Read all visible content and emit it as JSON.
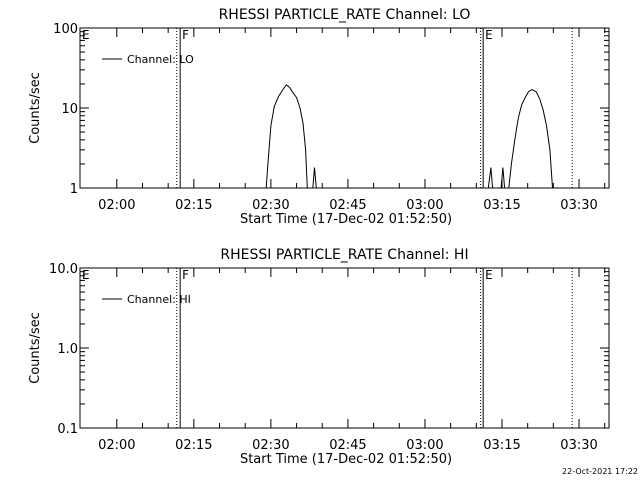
{
  "footer_timestamp": "22-Oct-2021 17:22",
  "chart_data": [
    {
      "type": "line",
      "title": "RHESSI PARTICLE_RATE Channel: LO",
      "xlabel": "Start Time (17-Dec-02 01:52:50)",
      "ylabel": "Counts/sec",
      "yscale": "log",
      "ylim": [
        1,
        100
      ],
      "ytick_labels": [
        {
          "v": 1,
          "label": "1"
        },
        {
          "v": 10,
          "label": "10"
        },
        {
          "v": 100,
          "label": "100"
        }
      ],
      "xtick_labels": [
        "02:00",
        "02:15",
        "02:30",
        "02:45",
        "03:00",
        "03:15",
        "03:30"
      ],
      "legend": {
        "placement": "top-left",
        "entries": [
          "Channel: LO"
        ]
      },
      "region_markers": [
        {
          "label": "E",
          "style": "solid",
          "time": "01:52:50"
        },
        {
          "label": "F",
          "style": "solid",
          "time": "02:12:20"
        },
        {
          "style": "dotted",
          "time": "02:11:40"
        },
        {
          "label": "E",
          "style": "solid",
          "time": "03:11:20"
        },
        {
          "style": "dotted",
          "time": "03:10:50"
        },
        {
          "style": "dotted",
          "time": "03:28:40"
        }
      ],
      "series": [
        {
          "name": "Channel: LO",
          "points": [
            [
              "02:29:05",
              1
            ],
            [
              "02:29:25",
              2.0
            ],
            [
              "02:30:00",
              6.0
            ],
            [
              "02:30:40",
              10.5
            ],
            [
              "02:31:30",
              14.0
            ],
            [
              "02:32:20",
              17.0
            ],
            [
              "02:33:00",
              19.5
            ],
            [
              "02:33:40",
              18.0
            ],
            [
              "02:34:20",
              15.5
            ],
            [
              "02:35:00",
              13.5
            ],
            [
              "02:35:40",
              10.0
            ],
            [
              "02:36:15",
              6.5
            ],
            [
              "02:36:45",
              3.0
            ],
            [
              "02:37:05",
              1
            ],
            [
              "02:38:10",
              1
            ],
            [
              "02:38:30",
              1.8
            ],
            [
              "02:38:50",
              1
            ],
            [
              "03:12:20",
              1
            ],
            [
              "03:12:50",
              1.8
            ],
            [
              "03:13:10",
              1
            ],
            [
              "03:14:50",
              1
            ],
            [
              "03:15:10",
              1.8
            ],
            [
              "03:15:30",
              1
            ],
            [
              "03:16:20",
              1
            ],
            [
              "03:16:50",
              2.0
            ],
            [
              "03:17:30",
              4.0
            ],
            [
              "03:18:10",
              7.5
            ],
            [
              "03:18:50",
              11.0
            ],
            [
              "03:19:30",
              13.5
            ],
            [
              "03:20:10",
              16.0
            ],
            [
              "03:20:50",
              17.0
            ],
            [
              "03:21:40",
              16.0
            ],
            [
              "03:22:20",
              13.0
            ],
            [
              "03:23:00",
              9.5
            ],
            [
              "03:23:40",
              6.0
            ],
            [
              "03:24:20",
              3.0
            ],
            [
              "03:24:50",
              1
            ]
          ]
        }
      ]
    },
    {
      "type": "line",
      "title": "RHESSI PARTICLE_RATE Channel: HI",
      "xlabel": "Start Time (17-Dec-02 01:52:50)",
      "ylabel": "Counts/sec",
      "yscale": "log",
      "ylim": [
        0.1,
        10
      ],
      "ytick_labels": [
        {
          "v": 0.1,
          "label": "0.1"
        },
        {
          "v": 1,
          "label": "1.0"
        },
        {
          "v": 10,
          "label": "10.0"
        }
      ],
      "xtick_labels": [
        "02:00",
        "02:15",
        "02:30",
        "02:45",
        "03:00",
        "03:15",
        "03:30"
      ],
      "legend": {
        "placement": "top-left",
        "entries": [
          "Channel: HI"
        ]
      },
      "region_markers": [
        {
          "label": "E",
          "style": "solid",
          "time": "01:52:50"
        },
        {
          "label": "F",
          "style": "solid",
          "time": "02:12:20"
        },
        {
          "style": "dotted",
          "time": "02:11:40"
        },
        {
          "label": "E",
          "style": "solid",
          "time": "03:11:20"
        },
        {
          "style": "dotted",
          "time": "03:10:50"
        },
        {
          "style": "dotted",
          "time": "03:28:40"
        }
      ],
      "series": [
        {
          "name": "Channel: HI",
          "points": []
        }
      ]
    }
  ]
}
